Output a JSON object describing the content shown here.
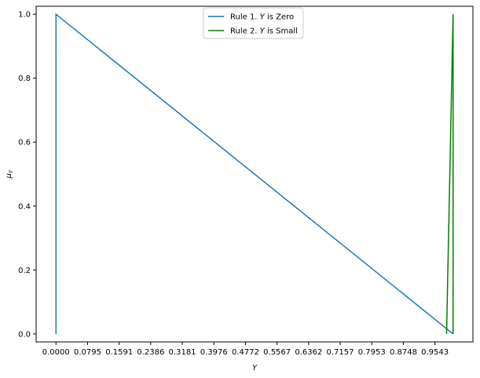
{
  "chart_data": {
    "type": "line",
    "xlabel": "Y",
    "ylabel": "μY",
    "xlim": [
      -0.05,
      1.05
    ],
    "ylim": [
      -0.025,
      1.025
    ],
    "x_ticks": [
      0.0,
      0.0795,
      0.1591,
      0.2386,
      0.3181,
      0.3976,
      0.4772,
      0.5567,
      0.6362,
      0.7157,
      0.7953,
      0.8748,
      0.9543
    ],
    "x_tick_labels": [
      "0.0000",
      "0.0795",
      "0.1591",
      "0.2386",
      "0.3181",
      "0.3976",
      "0.4772",
      "0.5567",
      "0.6362",
      "0.7157",
      "0.7953",
      "0.8748",
      "0.9543"
    ],
    "y_ticks": [
      0.0,
      0.2,
      0.4,
      0.6,
      0.8,
      1.0
    ],
    "y_tick_labels": [
      "0.0",
      "0.2",
      "0.4",
      "0.6",
      "0.8",
      "1.0"
    ],
    "legend_position": "top-center",
    "grid": false,
    "series": [
      {
        "name": "Rule 1. Y is Zero",
        "label_prefix": "Rule 1. ",
        "label_var": "Y",
        "label_suffix": " is Zero",
        "color": "#1f77b4",
        "x": [
          0.0,
          0.0,
          1.0
        ],
        "y": [
          0.0,
          1.0,
          0.0
        ]
      },
      {
        "name": "Rule 2. Y is Small",
        "label_prefix": "Rule 2. ",
        "label_var": "Y",
        "label_suffix": " is Small",
        "color": "#008000",
        "x": [
          0.9836,
          1.0,
          1.0
        ],
        "y": [
          0.0,
          1.0,
          0.0
        ]
      }
    ]
  }
}
